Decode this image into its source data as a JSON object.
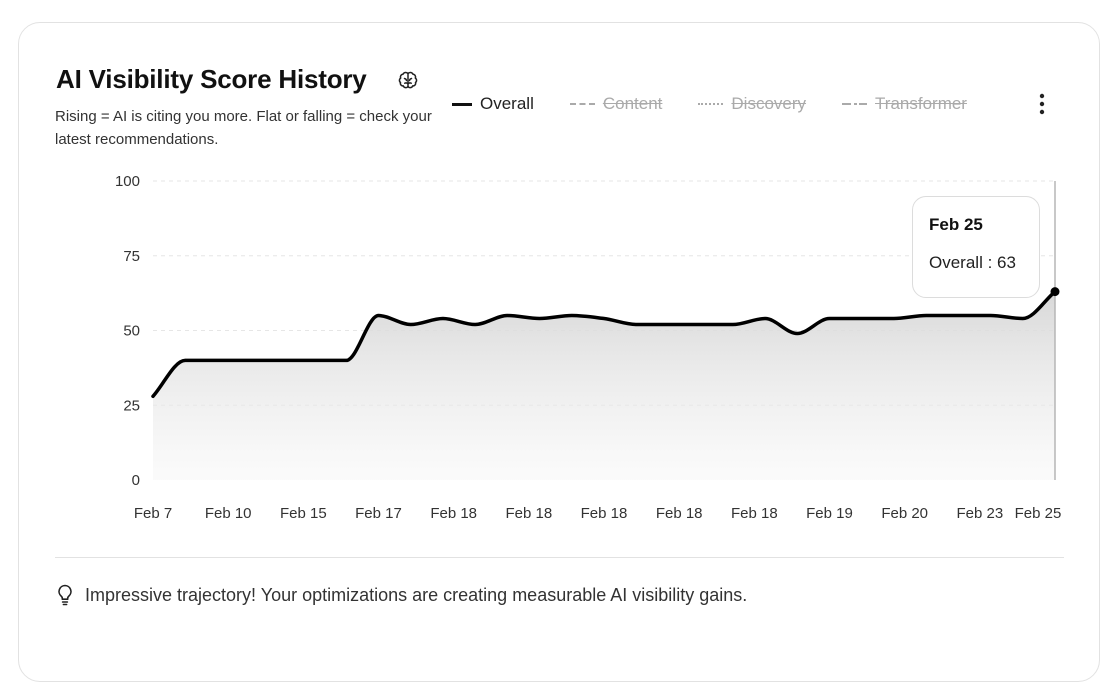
{
  "card": {
    "title": "AI Visibility Score History",
    "title_icon": "brain-icon",
    "subtitle": "Rising = AI is citing you more. Flat or falling = check your latest recommendations.",
    "menu_icon": "more-vertical-icon"
  },
  "legend": [
    {
      "label": "Overall",
      "style": "solid",
      "active": true
    },
    {
      "label": "Content",
      "style": "dashed",
      "active": false
    },
    {
      "label": "Discovery",
      "style": "dotted",
      "active": false
    },
    {
      "label": "Transformer",
      "style": "dashdot",
      "active": false
    }
  ],
  "tooltip": {
    "date": "Feb 25",
    "label": "Overall : 63"
  },
  "insight": {
    "icon": "lightbulb-icon",
    "text": "Impressive trajectory! Your optimizations are creating measurable AI visibility gains."
  },
  "colors": {
    "line": "#000000",
    "grid": "#e6e6e6",
    "cursor": "#b5b5b5",
    "axis_text": "#333333"
  },
  "chart_data": {
    "type": "area",
    "series": [
      {
        "name": "Overall",
        "values": [
          28,
          40,
          40,
          40,
          40,
          40,
          40,
          55,
          52,
          54,
          52,
          55,
          54,
          55,
          54,
          52,
          52,
          52,
          52,
          54,
          49,
          54,
          54,
          54,
          55,
          55,
          55,
          54,
          63
        ]
      }
    ],
    "x_labels": [
      "Feb 7",
      "Feb 10",
      "Feb 15",
      "Feb 17",
      "Feb 18",
      "Feb 18",
      "Feb 18",
      "Feb 18",
      "Feb 18",
      "Feb 19",
      "Feb 20",
      "Feb 23",
      "Feb 25"
    ],
    "y_ticks": [
      0,
      25,
      50,
      75,
      100
    ],
    "ylim": [
      0,
      100
    ],
    "grid": true,
    "highlight_point": {
      "x_label": "Feb 25",
      "value": 63
    }
  }
}
